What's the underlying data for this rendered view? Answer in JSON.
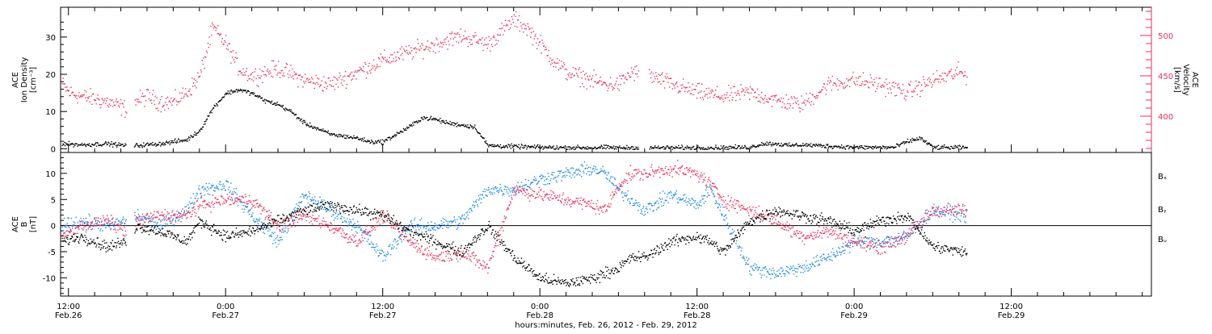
{
  "colors": {
    "black": "#000000",
    "red": "#e8305a",
    "blue": "#1e88e5"
  },
  "x_axis": {
    "label": "hours:minutes, Feb. 26, 2012 - Feb. 29, 2012",
    "ticks": [
      {
        "time": "12:00",
        "date": "Feb.26",
        "hours": 12
      },
      {
        "time": "0:00",
        "date": "Feb.27",
        "hours": 24
      },
      {
        "time": "12:00",
        "date": "Feb.27",
        "hours": 36
      },
      {
        "time": "0:00",
        "date": "Feb.28",
        "hours": 48
      },
      {
        "time": "12:00",
        "date": "Feb.28",
        "hours": 60
      },
      {
        "time": "0:00",
        "date": "Feb.29",
        "hours": 72
      },
      {
        "time": "12:00",
        "date": "Feb.29",
        "hours": 84
      }
    ]
  },
  "chart_data": [
    {
      "type": "scatter",
      "panel": "plasma",
      "ylabel_left": [
        "ACE",
        "Ion Density",
        "[cm⁻³]"
      ],
      "ylabel_right": [
        "ACE",
        "Velocity",
        "[km/s]"
      ],
      "ylim_left": [
        -1,
        38
      ],
      "ylim_right": [
        355,
        535
      ],
      "yticks_left": [
        0,
        10,
        20,
        30
      ],
      "yticks_right": [
        400,
        450,
        500
      ],
      "x_units": "hours since Feb.26 00:00",
      "xlim": [
        11.4,
        94.7
      ],
      "data_end_hours": 80.6,
      "gaps_hours": [
        [
          16.4,
          17.0
        ],
        [
          55.5,
          56.3
        ]
      ],
      "series": [
        {
          "axis": "left",
          "color": "#000000",
          "x": [
            11.5,
            13,
            15,
            16.3,
            17.2,
            19,
            21,
            22,
            23,
            24,
            25,
            26,
            27,
            28,
            29,
            30,
            32,
            34,
            35,
            36,
            37,
            38,
            39,
            40,
            41,
            42,
            43,
            44,
            48,
            52,
            53,
            54,
            60,
            64,
            65,
            66,
            67,
            68,
            72,
            75,
            76,
            77,
            78,
            80.6
          ],
          "y": [
            1.5,
            1.2,
            1.5,
            1.0,
            1.0,
            1.5,
            2.5,
            5,
            11,
            15,
            16,
            15,
            13,
            12,
            10,
            7,
            4,
            3,
            2,
            2,
            4,
            6,
            8.5,
            8,
            7,
            6.5,
            6,
            1,
            0.5,
            0.4,
            0.5,
            0.4,
            0.4,
            0.5,
            1.5,
            1.5,
            1.0,
            1.2,
            0.5,
            0.5,
            2,
            3,
            0.5,
            0.4
          ]
        },
        {
          "axis": "right",
          "color": "#e8305a",
          "x": [
            11.5,
            12,
            13,
            14,
            15,
            16.3,
            17.2,
            18,
            19,
            20,
            21,
            22,
            23,
            24,
            25,
            26,
            27,
            28,
            30,
            32,
            34,
            36,
            38,
            40,
            42,
            44,
            45,
            46,
            47,
            48,
            49,
            50,
            52,
            53,
            54,
            55,
            56.5,
            58,
            60,
            62,
            64,
            66,
            68,
            70,
            72,
            74,
            76,
            78,
            80,
            80.6
          ],
          "y": [
            440,
            430,
            425,
            422,
            418,
            410,
            420,
            425,
            418,
            418,
            430,
            450,
            510,
            490,
            460,
            450,
            455,
            460,
            445,
            440,
            455,
            470,
            480,
            490,
            500,
            490,
            505,
            520,
            510,
            490,
            470,
            455,
            445,
            440,
            440,
            455,
            450,
            440,
            430,
            425,
            430,
            420,
            415,
            440,
            445,
            440,
            430,
            445,
            455,
            450
          ]
        }
      ]
    },
    {
      "type": "scatter",
      "panel": "magnetic_field",
      "ylabel_left": [
        "ACE",
        "B",
        "[nT]"
      ],
      "ylim": [
        -13.5,
        14
      ],
      "yticks": [
        -10,
        -5,
        0,
        5,
        10
      ],
      "zero_line": true,
      "x_units": "hours since Feb.26 00:00",
      "xlim": [
        11.4,
        94.7
      ],
      "data_end_hours": 80.6,
      "gaps_hours": [
        [
          16.4,
          17.0
        ]
      ],
      "series": [
        {
          "name": "Bₓ",
          "color": "#000000",
          "x": [
            11.5,
            13,
            15,
            16.3,
            17.2,
            19,
            21,
            22,
            24,
            26,
            28,
            30,
            32,
            34,
            36,
            38,
            40,
            42,
            44,
            46,
            48,
            50,
            52,
            53,
            54,
            55,
            56,
            58,
            60,
            61,
            62,
            64,
            66,
            68,
            70,
            72,
            74,
            76,
            78,
            80.6
          ],
          "y": [
            -3,
            -2,
            -4,
            -3,
            0,
            -1,
            -3,
            1,
            -2,
            -1,
            1,
            3,
            4,
            3,
            2,
            -1,
            -3,
            -5,
            0,
            -6,
            -10,
            -11,
            -10,
            -9,
            -8,
            -6,
            -6,
            -3,
            -2,
            -3,
            -5,
            1,
            3,
            2,
            1,
            -1,
            1,
            2,
            -4,
            -5
          ]
        },
        {
          "name": "Bᵧ",
          "color": "#1e88e5",
          "x": [
            11.5,
            13,
            15,
            16.3,
            17.2,
            19,
            21,
            22,
            24,
            26,
            28,
            30,
            32,
            34,
            36,
            38,
            40,
            42,
            44,
            46,
            48,
            50,
            52,
            53,
            54,
            55,
            56,
            58,
            60,
            61,
            62,
            64,
            66,
            68,
            70,
            72,
            74,
            76,
            78,
            80.6
          ],
          "y": [
            0,
            1,
            0,
            1,
            2,
            0,
            3,
            7,
            8,
            2,
            -3,
            6,
            3,
            0,
            -6,
            0,
            0,
            1,
            7,
            7,
            9,
            10,
            11,
            10,
            7,
            5,
            3,
            6,
            4,
            7,
            2,
            -8,
            -9,
            -8,
            -6,
            -3,
            -3,
            -2,
            3,
            2
          ]
        },
        {
          "name": "Bᵤ",
          "color": "#e8305a",
          "x": [
            11.5,
            13,
            15,
            16.3,
            17.2,
            19,
            21,
            22,
            24,
            26,
            28,
            30,
            32,
            34,
            36,
            38,
            40,
            42,
            44,
            46,
            48,
            50,
            52,
            53,
            54,
            55,
            56,
            58,
            60,
            61,
            62,
            64,
            66,
            68,
            70,
            72,
            74,
            76,
            78,
            80.6
          ],
          "y": [
            -2,
            0,
            1,
            -1,
            1,
            2,
            2,
            4,
            5,
            5,
            0,
            2,
            0,
            -3,
            2,
            -3,
            -6,
            -5,
            -8,
            7,
            6,
            5,
            4,
            3,
            8,
            10,
            10,
            11,
            10,
            8,
            5,
            3,
            1,
            -2,
            -1,
            -3,
            -4,
            -2,
            3,
            3
          ]
        }
      ]
    }
  ]
}
